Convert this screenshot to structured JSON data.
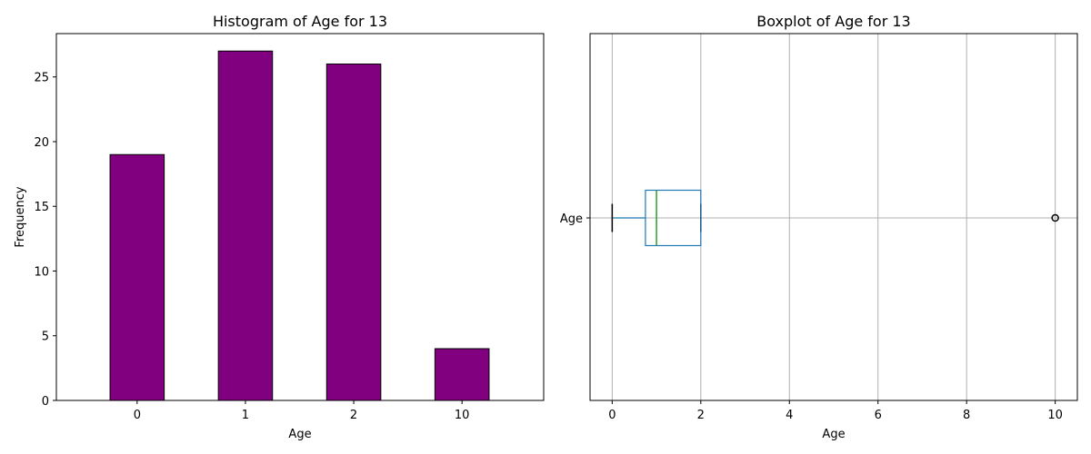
{
  "chart_data": [
    {
      "type": "bar",
      "title": "Histogram of Age for 13",
      "xlabel": "Age",
      "ylabel": "Frequency",
      "categories": [
        "0",
        "1",
        "2",
        "10"
      ],
      "values": [
        19,
        27,
        26,
        4
      ],
      "ylim": [
        0,
        28.35
      ],
      "yticks": [
        0,
        5,
        10,
        15,
        20,
        25
      ],
      "bar_color": "#800080",
      "edge_color": "#000000",
      "grid": false
    },
    {
      "type": "boxplot",
      "title": "Boxplot of Age for 13",
      "xlabel": "Age",
      "category_label": "Age",
      "xlim": [
        -0.5,
        10.5
      ],
      "xticks": [
        0,
        2,
        4,
        6,
        8,
        10
      ],
      "min": 0,
      "q1": 0.75,
      "median": 1,
      "q3": 2,
      "max": 2,
      "outliers": [
        10
      ],
      "box_color": "#1f77b4",
      "median_color": "#2ca02c",
      "grid": true
    }
  ]
}
